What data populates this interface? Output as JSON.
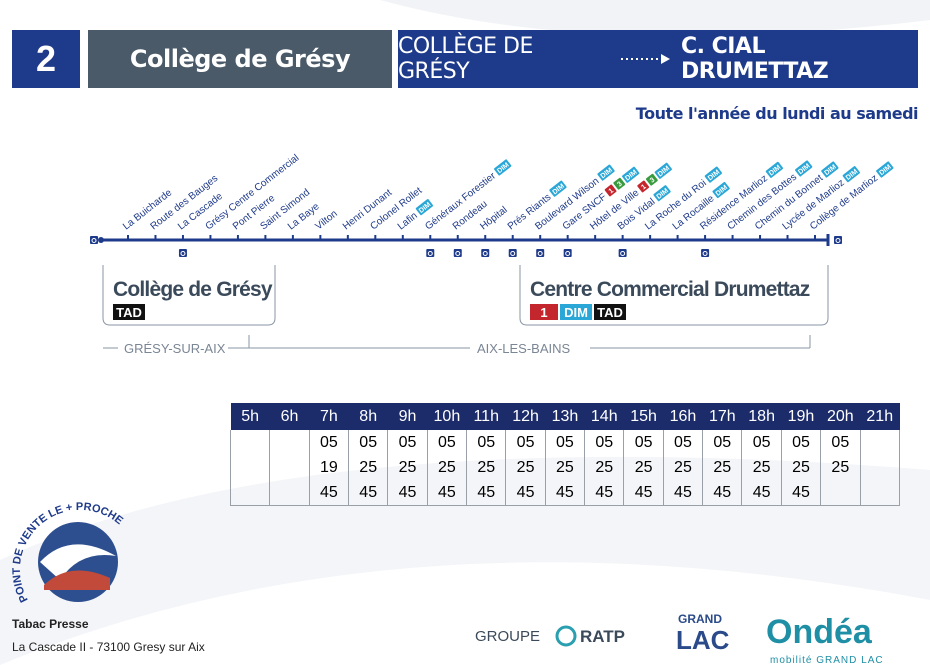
{
  "header": {
    "line_number": "2",
    "line_name": "Collège de Grésy",
    "origin": "COLLÈGE DE GRÉSY",
    "destination": "C. CIAL DRUMETTAZ"
  },
  "service_days": "Toute l'année du lundi au samedi",
  "stops": [
    {
      "name": "La Buicharde",
      "badges": []
    },
    {
      "name": "Route des Bauges",
      "badges": []
    },
    {
      "name": "La Cascade",
      "badges": []
    },
    {
      "name": "Grésy Centre Commercial",
      "badges": []
    },
    {
      "name": "Pont Pierre",
      "badges": []
    },
    {
      "name": "Saint Simond",
      "badges": []
    },
    {
      "name": "La Baye",
      "badges": []
    },
    {
      "name": "Vilton",
      "badges": []
    },
    {
      "name": "Henri Dunant",
      "badges": []
    },
    {
      "name": "Colonel Rollet",
      "badges": []
    },
    {
      "name": "Lafin",
      "badges": [
        {
          "label": "DIM",
          "color": "#2aa7d6"
        }
      ]
    },
    {
      "name": "Généraux Forestier",
      "badges": [
        {
          "label": "DIM",
          "color": "#2aa7d6"
        }
      ]
    },
    {
      "name": "Rondeau",
      "badges": []
    },
    {
      "name": "Hôpital",
      "badges": []
    },
    {
      "name": "Prés Riants",
      "badges": [
        {
          "label": "DIM",
          "color": "#2aa7d6"
        }
      ]
    },
    {
      "name": "Boulevard Wilson",
      "badges": [
        {
          "label": "DIM",
          "color": "#2aa7d6"
        }
      ]
    },
    {
      "name": "Gare SNCF",
      "badges": [
        {
          "label": "1",
          "color": "#c4262e"
        },
        {
          "label": "3",
          "color": "#3a9a3e"
        },
        {
          "label": "DIM",
          "color": "#2aa7d6"
        }
      ]
    },
    {
      "name": "Hôtel de Ville",
      "badges": [
        {
          "label": "1",
          "color": "#c4262e"
        },
        {
          "label": "3",
          "color": "#3a9a3e"
        },
        {
          "label": "DIM",
          "color": "#2aa7d6"
        }
      ]
    },
    {
      "name": "Bois Vidal",
      "badges": [
        {
          "label": "DIM",
          "color": "#2aa7d6"
        }
      ]
    },
    {
      "name": "La Roche du Roi",
      "badges": [
        {
          "label": "DIM",
          "color": "#2aa7d6"
        }
      ]
    },
    {
      "name": "La Rocaille",
      "badges": [
        {
          "label": "DIM",
          "color": "#2aa7d6"
        }
      ]
    },
    {
      "name": "Résidence Marlioz",
      "badges": [
        {
          "label": "DIM",
          "color": "#2aa7d6"
        }
      ]
    },
    {
      "name": "Chemin des Bottes",
      "badges": [
        {
          "label": "DIM",
          "color": "#2aa7d6"
        }
      ]
    },
    {
      "name": "Chemin du Bonnet",
      "badges": [
        {
          "label": "DIM",
          "color": "#2aa7d6"
        }
      ]
    },
    {
      "name": "Lycée de Marlioz",
      "badges": [
        {
          "label": "DIM",
          "color": "#2aa7d6"
        }
      ]
    },
    {
      "name": "Collège de Marlioz",
      "badges": [
        {
          "label": "DIM",
          "color": "#2aa7d6"
        }
      ]
    }
  ],
  "termini": [
    {
      "name": "Collège de Grésy",
      "badges": [
        {
          "label": "TAD",
          "color": "#111111"
        }
      ]
    },
    {
      "name": "Centre Commercial Drumettaz",
      "badges": [
        {
          "label": "1",
          "color": "#c4262e"
        },
        {
          "label": "DIM",
          "color": "#2aa7d6"
        },
        {
          "label": "TAD",
          "color": "#111111"
        }
      ]
    }
  ],
  "zones": [
    "GRÉSY-SUR-AIX",
    "AIX-LES-BAINS"
  ],
  "timetable": {
    "hours": [
      "5h",
      "6h",
      "7h",
      "8h",
      "9h",
      "10h",
      "11h",
      "12h",
      "13h",
      "14h",
      "15h",
      "16h",
      "17h",
      "18h",
      "19h",
      "20h",
      "21h"
    ],
    "departures": [
      [],
      [],
      [
        "05",
        "19",
        "45"
      ],
      [
        "05",
        "25",
        "45"
      ],
      [
        "05",
        "25",
        "45"
      ],
      [
        "05",
        "25",
        "45"
      ],
      [
        "05",
        "25",
        "45"
      ],
      [
        "05",
        "25",
        "45"
      ],
      [
        "05",
        "25",
        "45"
      ],
      [
        "05",
        "25",
        "45"
      ],
      [
        "05",
        "25",
        "45"
      ],
      [
        "05",
        "25",
        "45"
      ],
      [
        "05",
        "25",
        "45"
      ],
      [
        "05",
        "25",
        "45"
      ],
      [
        "05",
        "25",
        "45"
      ],
      [
        "05",
        "25"
      ],
      []
    ]
  },
  "point_of_sale": {
    "slogan": "POINT DE VENTE LE + PROCHE",
    "shop": "Tabac Presse",
    "address": "La Cascade II - 73100 Gresy sur Aix"
  },
  "logos": {
    "operator_prefix": "GROUPE",
    "operator": "RATP",
    "authority_top": "GRAND",
    "authority_bottom": "LAC",
    "network": "Ondéa",
    "network_tagline": "mobilité GRAND LAC"
  }
}
